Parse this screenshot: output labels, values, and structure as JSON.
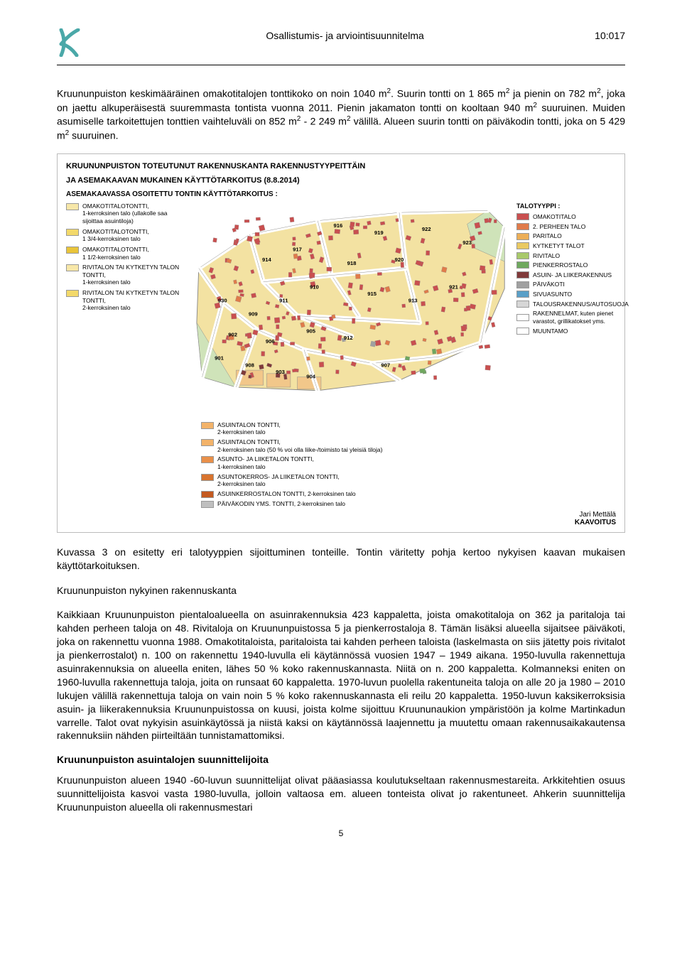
{
  "header": {
    "title": "Osallistumis- ja arviointisuunnitelma",
    "code": "10:017",
    "logo_color": "#4aa8a8"
  },
  "paragraphs": {
    "p1_html": "Kruununpuiston keskimääräinen omakotitalojen tonttikoko on noin 1040 m<span class=\"sup\">2</span>. Suurin tontti on 1 865 m<span class=\"sup\">2</span> ja pienin on 782 m<span class=\"sup\">2</span>, joka on jaettu alkuperäisestä suuremmasta tontista vuonna 2011. Pienin jakamaton tontti on kooltaan 940 m<span class=\"sup\">2</span> suuruinen. Muiden asumiselle tarkoitettujen tonttien vaihteluväli on 852 m<span class=\"sup\">2</span> - 2 249 m<span class=\"sup\">2</span> välillä. Alueen suurin tontti on päiväkodin tontti, joka on 5 429 m<span class=\"sup\">2</span> suuruinen.",
    "caption": "Kuvassa 3  on esitetty eri talotyyppien sijoittuminen tonteille. Tontin väritetty pohja kertoo nykyisen kaavan mukaisen käyttötarkoituksen.",
    "p3_heading": "Kruununpuiston nykyinen rakennuskanta",
    "p3": "Kaikkiaan Kruununpuiston pientaloalueella on asuinrakennuksia 423 kappaletta, joista omakotitaloja on 362 ja paritaloja tai kahden perheen taloja on 48. Rivitaloja on Kruununpuistossa 5 ja pienkerrostaloja 8. Tämän lisäksi alueella sijaitsee päiväkoti, joka on rakennettu vuonna 1988. Omakotitaloista, paritaloista tai kahden perheen taloista (laskelmasta on siis jätetty pois rivitalot ja pienkerrostalot) n. 100 on rakennettu 1940-luvulla eli käytännössä vuosien 1947 – 1949 aikana. 1950-luvulla rakennettuja asuinrakennuksia on alueella eniten, lähes 50 % koko rakennuskannasta. Niitä on n. 200 kappaletta. Kolmanneksi eniten on 1960-luvulla rakennettuja taloja, joita on runsaat 60 kappaletta. 1970-luvun puolella rakentuneita taloja on alle 20 ja 1980 – 2010 lukujen välillä rakennettuja taloja on vain noin 5 % koko rakennuskannasta eli reilu 20 kappaletta. 1950-luvun kaksikerroksisia asuin- ja liikerakennuksia Kruununpuistossa on kuusi, joista kolme sijoittuu Kruununaukion ympäristöön ja kolme Martinkadun varrelle. Talot ovat nykyisin asuinkäytössä ja niistä kaksi on käytännössä laajennettu ja muutettu omaan rakennusaikakautensa rakennuksiin nähden piirteiltään tunnistamattomiksi.",
    "p4_heading": "Kruununpuiston asuintalojen suunnittelijoita",
    "p4": "Kruununpuiston alueen 1940 -60-luvun suunnittelijat olivat pääasiassa koulutukseltaan rakennusmestareita. Arkkitehtien osuus suunnittelijoista kasvoi vasta 1980-luvulla, jolloin valtaosa em. alueen tonteista olivat jo rakentuneet. Ahkerin suunnittelija Kruununpuiston alueella oli rakennusmestari"
  },
  "map": {
    "title_line1": "KRUUNUNPUISTON TOTEUTUNUT RAKENNUSKANTA RAKENNUSTYYPEITTÄIN",
    "title_line2": "JA ASEMAKAAVAN MUKAINEN KÄYTTÖTARKOITUS (8.8.2014)",
    "legend_heading": "ASEMAKAAVASSA OSOITETTU TONTIN KÄYTTÖTARKOITUS :",
    "left_legend": [
      {
        "color": "#f7e7a8",
        "label": "OMAKOTITALOTONTTI,\n1-kerroksinen talo (ullakolle saa sijoittaa asuintiloja)"
      },
      {
        "color": "#f3d96a",
        "label": "OMAKOTITALOTONTTI,\n1 3/4-kerroksinen talo"
      },
      {
        "color": "#e9c43a",
        "label": "OMAKOTITALOTONTTI,\n1 1/2-kerroksinen talo"
      },
      {
        "color": "#f7e7a8",
        "label": "RIVITALON TAI KYTKETYN TALON TONTTI,\n1-kerroksinen talo"
      },
      {
        "color": "#f3d96a",
        "label": "RIVITALON TAI KYTKETYN TALON TONTTI,\n2-kerroksinen talo"
      }
    ],
    "bottom_legend": [
      {
        "color": "#f3b36a",
        "label": "ASUINTALON TONTTI,\n2-kerroksinen talo"
      },
      {
        "color": "#f3b36a",
        "label": "ASUINTALON TONTTI,\n2-kerroksinen talo (50 % voi olla liike-/toimisto tai yleisiä tiloja)"
      },
      {
        "color": "#e9904a",
        "label": "ASUNTO- JA LIIKETALON TONTTI,\n1-kerroksinen talo"
      },
      {
        "color": "#d8742f",
        "label": "ASUNTOKERROS- JA LIIKETALON TONTTI,\n2-kerroksinen talo"
      },
      {
        "color": "#c45a20",
        "label": "ASUINKERROSTALON TONTTI, 2-kerroksinen talo"
      },
      {
        "color": "#bfbfbf",
        "label": "PÄIVÄKODIN YMS. TONTTI, 2-kerroksinen talo"
      }
    ],
    "right_legend_heading": "TALOTYYPPI :",
    "right_legend": [
      {
        "color": "#c94f4f",
        "label": "OMAKOTITALO"
      },
      {
        "color": "#e07b4a",
        "label": "2. PERHEEN TALO"
      },
      {
        "color": "#ecae57",
        "label": "PARITALO"
      },
      {
        "color": "#e9c962",
        "label": "KYTKETYT TALOT"
      },
      {
        "color": "#a8c96a",
        "label": "RIVITALO"
      },
      {
        "color": "#6fa85e",
        "label": "PIENKERROSTALO"
      },
      {
        "color": "#803a3a",
        "label": "ASUIN- JA LIIKERAKENNUS"
      },
      {
        "color": "#a0a0a0",
        "label": "PÄIVÄKOTI"
      },
      {
        "color": "#5a9fc7",
        "label": "SIVUASUNTO"
      },
      {
        "color": "#d6d6d6",
        "label": "TALOUSRAKENNUS/AUTOSUOJA"
      },
      {
        "color": "#ffffff",
        "label": "RAKENNELMAT, kuten pienet varastot, grillikatokset yms."
      },
      {
        "color": "#ffffff",
        "label": "MUUNTAMO"
      }
    ],
    "block_labels": [
      "916",
      "919",
      "922",
      "923",
      "917",
      "914",
      "918",
      "920",
      "910",
      "911",
      "915",
      "913",
      "921",
      "909",
      "902",
      "906",
      "905",
      "912",
      "901",
      "908",
      "903",
      "904",
      "907",
      "930"
    ],
    "author_name": "Jari Mettälä",
    "author_dept": "KAAVOITUS",
    "colors": {
      "plot_fill_main": "#f3e2a2",
      "plot_fill_green": "#cfe3b9",
      "plot_fill_orange": "#f2c78a",
      "road": "#ffffff",
      "building_red": "#c94f4f",
      "building_orange": "#e07b4a",
      "building_brown": "#803a3a",
      "building_green": "#6fa85e",
      "building_grey": "#a0a0a0",
      "outline": "#8a8a8a"
    }
  },
  "page_number": "5"
}
